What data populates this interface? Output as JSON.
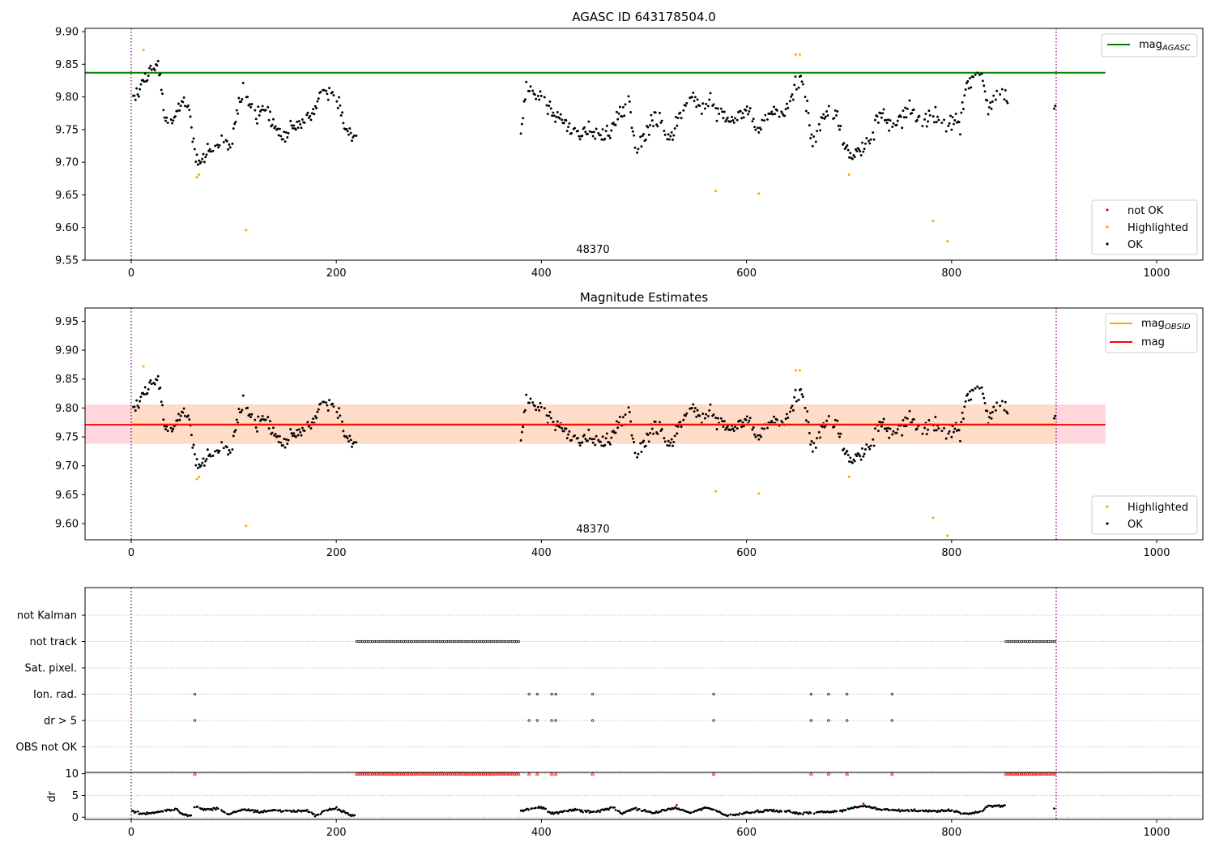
{
  "figure": {
    "title": "AGASC ID 643178504.0"
  },
  "chart_data": [
    {
      "type": "scatter",
      "title": "AGASC ID 643178504.0",
      "xlim": [
        -45,
        1045
      ],
      "ylim": [
        9.55,
        9.905
      ],
      "x_ticks": [
        0,
        200,
        400,
        600,
        800,
        1000
      ],
      "y_ticks": [
        9.55,
        9.6,
        9.65,
        9.7,
        9.75,
        9.8,
        9.85,
        9.9
      ],
      "obsid_label": "48370",
      "obs_bounds": [
        0,
        902
      ],
      "reference_line": {
        "name": "mag_AGASC",
        "label_main": "mag",
        "label_sub": "AGASC",
        "y": 9.837,
        "x_range": [
          -45,
          950
        ],
        "color": "#008000"
      },
      "legend_top": [
        {
          "label": "mag",
          "sub": "AGASC",
          "color": "#008000",
          "kind": "line"
        }
      ],
      "legend_bottom": [
        {
          "label": "not OK",
          "color": "#ff0000",
          "kind": "dot"
        },
        {
          "label": "Highlighted",
          "color": "#ffa500",
          "kind": "dot"
        },
        {
          "label": "OK",
          "color": "#000000",
          "kind": "dot"
        }
      ],
      "highlighted": {
        "x": [
          12,
          64,
          66,
          112,
          570,
          612,
          648,
          652,
          700,
          782,
          796
        ],
        "y": [
          9.872,
          9.677,
          9.681,
          9.596,
          9.656,
          9.652,
          9.865,
          9.865,
          9.681,
          9.61,
          9.579
        ]
      },
      "segments": [
        {
          "x0": 0,
          "x1": 220,
          "knots": [
            [
              0,
              9.8
            ],
            [
              5,
              9.8
            ],
            [
              10,
              9.82
            ],
            [
              20,
              9.84
            ],
            [
              27,
              9.85
            ],
            [
              32,
              9.77
            ],
            [
              40,
              9.77
            ],
            [
              50,
              9.79
            ],
            [
              57,
              9.78
            ],
            [
              62,
              9.72
            ],
            [
              66,
              9.7
            ],
            [
              72,
              9.71
            ],
            [
              80,
              9.72
            ],
            [
              86,
              9.73
            ],
            [
              92,
              9.73
            ],
            [
              97,
              9.72
            ],
            [
              102,
              9.77
            ],
            [
              110,
              9.81
            ],
            [
              115,
              9.79
            ],
            [
              122,
              9.77
            ],
            [
              130,
              9.78
            ],
            [
              138,
              9.76
            ],
            [
              145,
              9.74
            ],
            [
              150,
              9.74
            ],
            [
              158,
              9.75
            ],
            [
              165,
              9.76
            ],
            [
              172,
              9.77
            ],
            [
              180,
              9.78
            ],
            [
              188,
              9.81
            ],
            [
              195,
              9.81
            ],
            [
              202,
              9.79
            ],
            [
              208,
              9.76
            ],
            [
              213,
              9.74
            ],
            [
              218,
              9.74
            ]
          ]
        },
        {
          "x0": 380,
          "x1": 855,
          "knots": [
            [
              380,
              9.75
            ],
            [
              385,
              9.82
            ],
            [
              392,
              9.81
            ],
            [
              400,
              9.8
            ],
            [
              410,
              9.78
            ],
            [
              420,
              9.77
            ],
            [
              428,
              9.75
            ],
            [
              435,
              9.74
            ],
            [
              445,
              9.75
            ],
            [
              455,
              9.74
            ],
            [
              462,
              9.74
            ],
            [
              470,
              9.76
            ],
            [
              478,
              9.78
            ],
            [
              486,
              9.79
            ],
            [
              492,
              9.71
            ],
            [
              500,
              9.74
            ],
            [
              508,
              9.76
            ],
            [
              515,
              9.77
            ],
            [
              520,
              9.74
            ],
            [
              528,
              9.74
            ],
            [
              535,
              9.77
            ],
            [
              542,
              9.79
            ],
            [
              550,
              9.8
            ],
            [
              558,
              9.78
            ],
            [
              565,
              9.8
            ],
            [
              572,
              9.78
            ],
            [
              580,
              9.77
            ],
            [
              590,
              9.77
            ],
            [
              598,
              9.78
            ],
            [
              605,
              9.76
            ],
            [
              610,
              9.75
            ],
            [
              618,
              9.76
            ],
            [
              625,
              9.78
            ],
            [
              632,
              9.77
            ],
            [
              640,
              9.78
            ],
            [
              648,
              9.82
            ],
            [
              655,
              9.83
            ],
            [
              660,
              9.77
            ],
            [
              665,
              9.72
            ],
            [
              672,
              9.76
            ],
            [
              680,
              9.78
            ],
            [
              688,
              9.77
            ],
            [
              695,
              9.73
            ],
            [
              702,
              9.71
            ],
            [
              712,
              9.72
            ],
            [
              722,
              9.73
            ],
            [
              730,
              9.78
            ],
            [
              738,
              9.76
            ],
            [
              745,
              9.76
            ],
            [
              755,
              9.78
            ],
            [
              762,
              9.78
            ],
            [
              770,
              9.76
            ],
            [
              780,
              9.77
            ],
            [
              790,
              9.77
            ],
            [
              800,
              9.76
            ],
            [
              808,
              9.76
            ],
            [
              815,
              9.82
            ],
            [
              822,
              9.83
            ],
            [
              830,
              9.83
            ],
            [
              835,
              9.78
            ],
            [
              842,
              9.8
            ],
            [
              850,
              9.8
            ]
          ]
        },
        {
          "x0": 900,
          "x1": 902,
          "knots": [
            [
              900,
              9.78
            ],
            [
              902,
              9.79
            ]
          ]
        }
      ]
    },
    {
      "type": "scatter",
      "title": "Magnitude Estimates",
      "xlim": [
        -45,
        1045
      ],
      "ylim": [
        9.572,
        9.973
      ],
      "x_ticks": [
        0,
        200,
        400,
        600,
        800,
        1000
      ],
      "y_ticks": [
        9.6,
        9.65,
        9.7,
        9.75,
        9.8,
        9.85,
        9.9,
        9.95
      ],
      "obsid_label": "48370",
      "band_pink": {
        "y0": 9.738,
        "y1": 9.806,
        "x_range": [
          -45,
          950
        ],
        "color": "#ffd6dc"
      },
      "band_orange": {
        "y0": 9.738,
        "y1": 9.806,
        "x_range": [
          0,
          902
        ],
        "color": "#ffdcc8"
      },
      "mag_obsid": {
        "y": 9.772,
        "x_range": [
          0,
          902
        ],
        "color": "#ffa500"
      },
      "mag_line": {
        "y": 9.771,
        "x_range": [
          -45,
          950
        ],
        "color": "#ff0000"
      },
      "legend_top": [
        {
          "label": "mag",
          "sub": "OBSID",
          "color": "#ffa500",
          "kind": "line"
        },
        {
          "label": "mag",
          "sub": "",
          "color": "#ff0000",
          "kind": "line"
        }
      ],
      "legend_bottom": [
        {
          "label": "Highlighted",
          "color": "#ffa500",
          "kind": "dot"
        },
        {
          "label": "OK",
          "color": "#000000",
          "kind": "dot"
        }
      ]
    },
    {
      "type": "scatter",
      "title": "",
      "xlim": [
        -45,
        1045
      ],
      "x_ticks": [
        0,
        200,
        400,
        600,
        800,
        1000
      ],
      "flag_rows": [
        "not Kalman",
        "not track",
        "Sat. pixel.",
        "Ion. rad.",
        "dr > 5",
        "OBS not OK"
      ],
      "not_track_ranges": [
        [
          220,
          378
        ],
        [
          853,
          902
        ]
      ],
      "ion_rad_x": [
        62,
        388,
        396,
        410,
        414,
        450,
        568,
        663,
        680,
        698,
        742
      ],
      "dr_gt5_x": [
        62,
        388,
        396,
        410,
        414,
        450,
        568,
        663,
        680,
        698,
        742
      ],
      "dr_axis": {
        "ylabel": "dr",
        "ylim": [
          -0.5,
          10.3
        ],
        "y_ticks": [
          0,
          5,
          10
        ]
      },
      "dr_saturated_ranges": [
        [
          220,
          378
        ],
        [
          853,
          902
        ]
      ],
      "dr_saturated_points": [
        62,
        388,
        396,
        410,
        414,
        450,
        568,
        663,
        680,
        698,
        742
      ],
      "dr_red_points": [
        [
          532,
          2.8
        ],
        [
          714,
          3.1
        ]
      ]
    }
  ]
}
